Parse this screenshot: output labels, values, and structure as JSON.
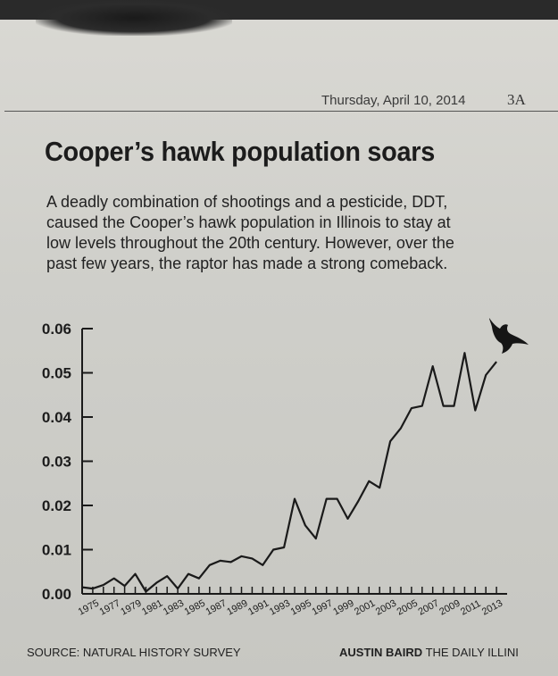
{
  "header": {
    "date": "Thursday, April 10, 2014",
    "page": "3A"
  },
  "article": {
    "headline": "Cooper’s hawk population soars",
    "dek_lines": [
      "A deadly combination of shootings and a pesticide, DDT,",
      "caused the Cooper’s hawk population in Illinois to stay at",
      "low levels throughout the 20th century. However, over the",
      "past few years, the raptor has made a strong comeback."
    ]
  },
  "chart_data": {
    "type": "line",
    "title": "",
    "xlabel": "",
    "ylabel": "",
    "ylim": [
      0,
      0.06
    ],
    "xlim": [
      1974,
      2014
    ],
    "yticks": [
      "0.00",
      "0.01",
      "0.02",
      "0.03",
      "0.04",
      "0.05",
      "0.06"
    ],
    "xticks": [
      "1975",
      "1977",
      "1979",
      "1981",
      "1983",
      "1985",
      "1987",
      "1989",
      "1991",
      "1993",
      "1995",
      "1997",
      "1999",
      "2001",
      "2003",
      "2005",
      "2007",
      "2009",
      "2011",
      "2013"
    ],
    "grid": false,
    "series": [
      {
        "x": [
          1974,
          1975,
          1976,
          1977,
          1978,
          1979,
          1980,
          1981,
          1982,
          1983,
          1984,
          1985,
          1986,
          1987,
          1988,
          1989,
          1990,
          1991,
          1992,
          1993,
          1994,
          1995,
          1996,
          1997,
          1998,
          1999,
          2000,
          2001,
          2002,
          2003,
          2004,
          2005,
          2006,
          2007,
          2008,
          2009,
          2010,
          2011,
          2012,
          2013
        ],
        "y": [
          0.0015,
          0.0012,
          0.002,
          0.0035,
          0.0018,
          0.0045,
          0.0005,
          0.0025,
          0.004,
          0.0012,
          0.0045,
          0.0035,
          0.0065,
          0.0075,
          0.0072,
          0.0085,
          0.008,
          0.0065,
          0.01,
          0.0105,
          0.0215,
          0.0155,
          0.0125,
          0.0215,
          0.0215,
          0.017,
          0.021,
          0.0255,
          0.024,
          0.0345,
          0.0375,
          0.042,
          0.0425,
          0.0515,
          0.0425,
          0.0425,
          0.0545,
          0.0415,
          0.0495,
          0.0525
        ]
      }
    ],
    "line_color": "#1a1a1a",
    "source": "SOURCE: NATURAL HISTORY SURVEY",
    "credit_name": "AUSTIN BAIRD",
    "credit_org": "THE DAILY ILLINI"
  }
}
